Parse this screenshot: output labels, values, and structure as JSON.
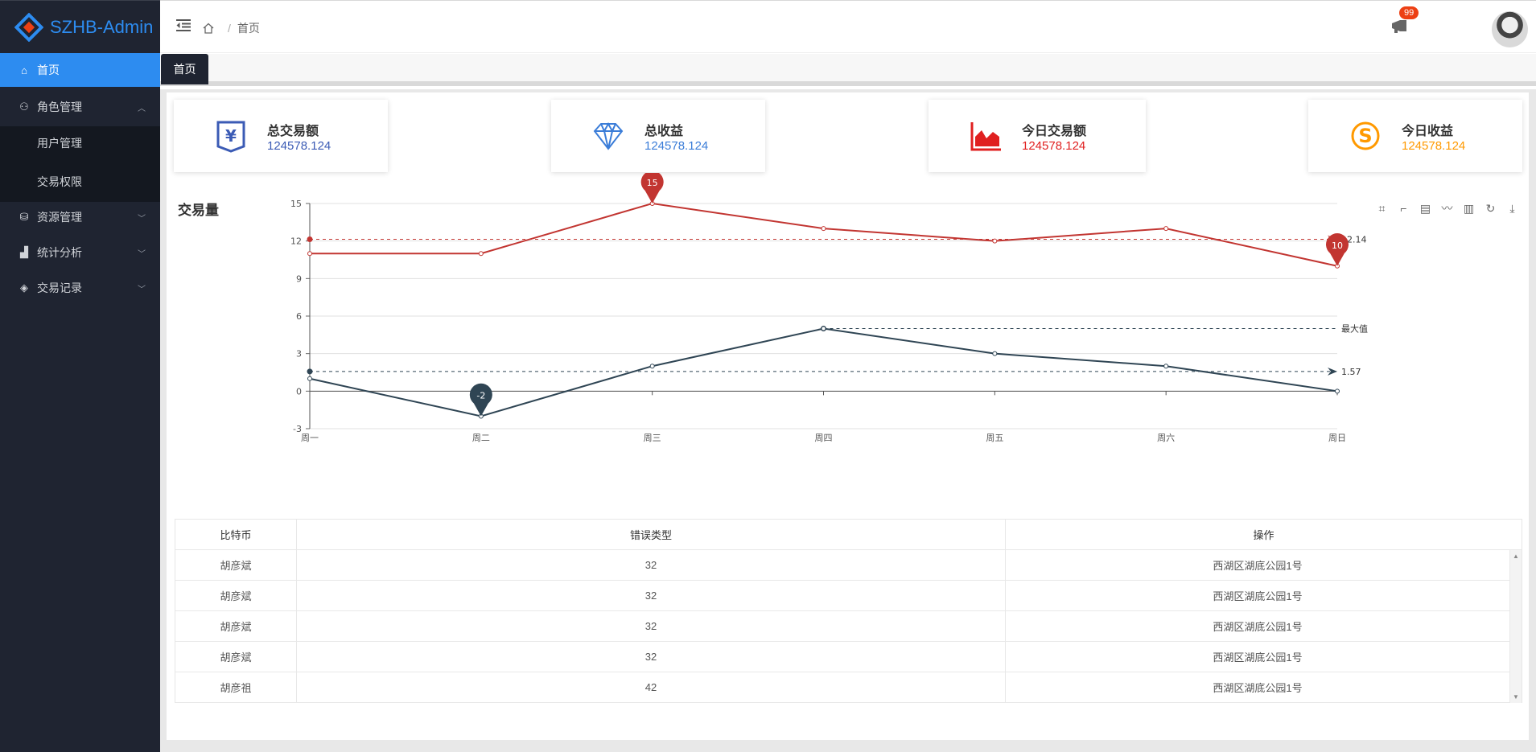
{
  "app": {
    "logo_text": "SZHB-Admin"
  },
  "colors": {
    "primary": "#2d8cf0",
    "sidebar": "#1f2431",
    "red": "#c23531",
    "navy": "#2f4554",
    "orange": "#ff9900"
  },
  "sidebar": {
    "items": [
      {
        "label": "首页",
        "icon": "home-icon",
        "active": true
      },
      {
        "label": "角色管理",
        "icon": "user-icon",
        "expanded": true
      },
      {
        "label": "资源管理",
        "icon": "resource-icon"
      },
      {
        "label": "统计分析",
        "icon": "chart-icon"
      },
      {
        "label": "交易记录",
        "icon": "diamond-icon"
      }
    ],
    "sub_items": [
      {
        "label": "用户管理"
      },
      {
        "label": "交易权限"
      }
    ]
  },
  "header": {
    "breadcrumb": "首页",
    "badge_count": "99"
  },
  "tabs": [
    {
      "label": "首页"
    }
  ],
  "cards": [
    {
      "title": "总交易额",
      "value": "124578.124",
      "icon": "yen-icon",
      "color": "#3b5bb5"
    },
    {
      "title": "总收益",
      "value": "124578.124",
      "icon": "diamond-icon",
      "color": "#3b7dd8"
    },
    {
      "title": "今日交易额",
      "value": "124578.124",
      "icon": "area-chart-icon",
      "color": "#e02020"
    },
    {
      "title": "今日收益",
      "value": "124578.124",
      "icon": "skype-icon",
      "color": "#ff9900"
    }
  ],
  "section": {
    "title": "交易量"
  },
  "toolbox": [
    "zoom-icon",
    "zoom-reset-icon",
    "data-view-icon",
    "line-icon",
    "bar-icon",
    "restore-icon",
    "download-icon"
  ],
  "chart_data": {
    "type": "line",
    "categories": [
      "周一",
      "周二",
      "周三",
      "周四",
      "周五",
      "周六",
      "周日"
    ],
    "ylim": [
      -3,
      15
    ],
    "yticks": [
      "-3",
      "0",
      "3",
      "6",
      "9",
      "12",
      "15"
    ],
    "series": [
      {
        "values": [
          11,
          11,
          15,
          13,
          12,
          13,
          10
        ],
        "color": "#c23531",
        "mark_points": [
          {
            "index": 2,
            "label": "15"
          },
          {
            "index": 6,
            "label": "10"
          }
        ],
        "mark_line_avg": {
          "value": 12.14,
          "label": "12.14"
        }
      },
      {
        "values": [
          1,
          -2,
          2,
          5,
          3,
          2,
          0
        ],
        "color": "#2f4554",
        "mark_points": [
          {
            "index": 1,
            "label": "-2"
          }
        ],
        "mark_line_max": {
          "value": 5,
          "label": "最大值"
        },
        "mark_line_avg": {
          "value": 1.57,
          "label": "1.57"
        }
      }
    ]
  },
  "table": {
    "columns": [
      "比特币",
      "错误类型",
      "操作"
    ],
    "rows": [
      [
        "胡彦斌",
        "32",
        "西湖区湖底公园1号"
      ],
      [
        "胡彦斌",
        "32",
        "西湖区湖底公园1号"
      ],
      [
        "胡彦斌",
        "32",
        "西湖区湖底公园1号"
      ],
      [
        "胡彦斌",
        "32",
        "西湖区湖底公园1号"
      ],
      [
        "胡彦祖",
        "42",
        "西湖区湖底公园1号"
      ]
    ]
  }
}
